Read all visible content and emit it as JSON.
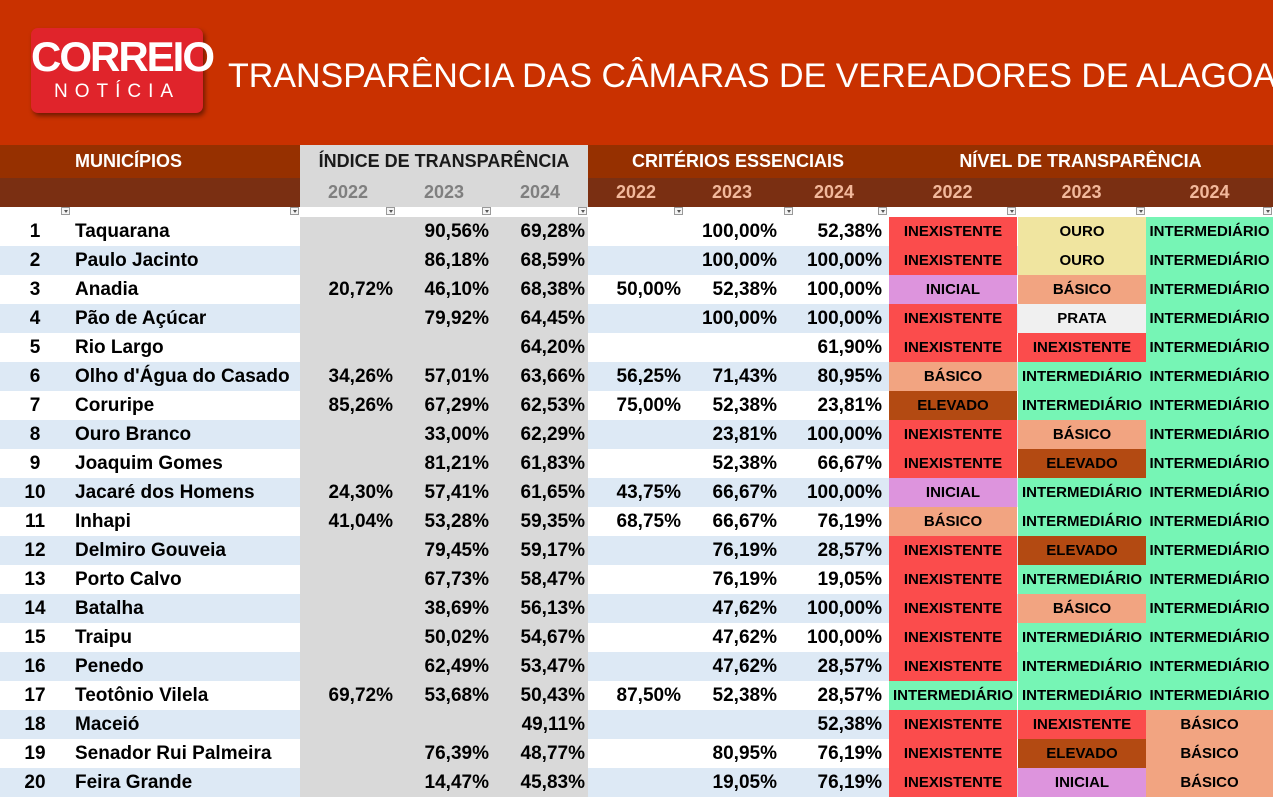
{
  "logo": {
    "top": "CORREIO",
    "bottom": "NOTÍCIA"
  },
  "title": "TRANSPARÊNCIA DAS CÂMARAS DE VEREADORES DE ALAGOAS",
  "headers": {
    "municipios": "MUNICÍPIOS",
    "indice": "ÍNDICE DE TRANSPARÊNCIA",
    "criterios": "CRITÉRIOS ESSENCIAIS",
    "nivel": "NÍVEL DE TRANSPARÊNCIA",
    "years": [
      "2022",
      "2023",
      "2024"
    ]
  },
  "colors": {
    "banner": "#c93100",
    "INEXISTENTE": "#fb4c4c",
    "OURO": "#f0e5a0",
    "INTERMEDIÁRIO": "#76f5b5",
    "INICIAL": "#dd94dd",
    "BÁSICO": "#f2a481",
    "PRATA": "#f0f0f0",
    "ELEVADO": "#b34a12"
  },
  "rows": [
    {
      "num": "1",
      "mun": "Taquarana",
      "i22": "",
      "i23": "90,56%",
      "i24": "69,28%",
      "c22": "",
      "c23": "100,00%",
      "c24": "52,38%",
      "n22": "INEXISTENTE",
      "n23": "OURO",
      "n24": "INTERMEDIÁRIO"
    },
    {
      "num": "2",
      "mun": "Paulo Jacinto",
      "i22": "",
      "i23": "86,18%",
      "i24": "68,59%",
      "c22": "",
      "c23": "100,00%",
      "c24": "100,00%",
      "n22": "INEXISTENTE",
      "n23": "OURO",
      "n24": "INTERMEDIÁRIO"
    },
    {
      "num": "3",
      "mun": "Anadia",
      "i22": "20,72%",
      "i23": "46,10%",
      "i24": "68,38%",
      "c22": "50,00%",
      "c23": "52,38%",
      "c24": "100,00%",
      "n22": "INICIAL",
      "n23": "BÁSICO",
      "n24": "INTERMEDIÁRIO"
    },
    {
      "num": "4",
      "mun": "Pão de Açúcar",
      "i22": "",
      "i23": "79,92%",
      "i24": "64,45%",
      "c22": "",
      "c23": "100,00%",
      "c24": "100,00%",
      "n22": "INEXISTENTE",
      "n23": "PRATA",
      "n24": "INTERMEDIÁRIO"
    },
    {
      "num": "5",
      "mun": "Rio Largo",
      "i22": "",
      "i23": "",
      "i24": "64,20%",
      "c22": "",
      "c23": "",
      "c24": "61,90%",
      "n22": "INEXISTENTE",
      "n23": "INEXISTENTE",
      "n24": "INTERMEDIÁRIO"
    },
    {
      "num": "6",
      "mun": "Olho d'Água do Casado",
      "i22": "34,26%",
      "i23": "57,01%",
      "i24": "63,66%",
      "c22": "56,25%",
      "c23": "71,43%",
      "c24": "80,95%",
      "n22": "BÁSICO",
      "n23": "INTERMEDIÁRIO",
      "n24": "INTERMEDIÁRIO"
    },
    {
      "num": "7",
      "mun": "Coruripe",
      "i22": "85,26%",
      "i23": "67,29%",
      "i24": "62,53%",
      "c22": "75,00%",
      "c23": "52,38%",
      "c24": "23,81%",
      "n22": "ELEVADO",
      "n23": "INTERMEDIÁRIO",
      "n24": "INTERMEDIÁRIO"
    },
    {
      "num": "8",
      "mun": "Ouro Branco",
      "i22": "",
      "i23": "33,00%",
      "i24": "62,29%",
      "c22": "",
      "c23": "23,81%",
      "c24": "100,00%",
      "n22": "INEXISTENTE",
      "n23": "BÁSICO",
      "n24": "INTERMEDIÁRIO"
    },
    {
      "num": "9",
      "mun": "Joaquim Gomes",
      "i22": "",
      "i23": "81,21%",
      "i24": "61,83%",
      "c22": "",
      "c23": "52,38%",
      "c24": "66,67%",
      "n22": "INEXISTENTE",
      "n23": "ELEVADO",
      "n24": "INTERMEDIÁRIO"
    },
    {
      "num": "10",
      "mun": "Jacaré dos Homens",
      "i22": "24,30%",
      "i23": "57,41%",
      "i24": "61,65%",
      "c22": "43,75%",
      "c23": "66,67%",
      "c24": "100,00%",
      "n22": "INICIAL",
      "n23": "INTERMEDIÁRIO",
      "n24": "INTERMEDIÁRIO"
    },
    {
      "num": "11",
      "mun": "Inhapi",
      "i22": "41,04%",
      "i23": "53,28%",
      "i24": "59,35%",
      "c22": "68,75%",
      "c23": "66,67%",
      "c24": "76,19%",
      "n22": "BÁSICO",
      "n23": "INTERMEDIÁRIO",
      "n24": "INTERMEDIÁRIO"
    },
    {
      "num": "12",
      "mun": "Delmiro Gouveia",
      "i22": "",
      "i23": "79,45%",
      "i24": "59,17%",
      "c22": "",
      "c23": "76,19%",
      "c24": "28,57%",
      "n22": "INEXISTENTE",
      "n23": "ELEVADO",
      "n24": "INTERMEDIÁRIO"
    },
    {
      "num": "13",
      "mun": "Porto Calvo",
      "i22": "",
      "i23": "67,73%",
      "i24": "58,47%",
      "c22": "",
      "c23": "76,19%",
      "c24": "19,05%",
      "n22": "INEXISTENTE",
      "n23": "INTERMEDIÁRIO",
      "n24": "INTERMEDIÁRIO"
    },
    {
      "num": "14",
      "mun": "Batalha",
      "i22": "",
      "i23": "38,69%",
      "i24": "56,13%",
      "c22": "",
      "c23": "47,62%",
      "c24": "100,00%",
      "n22": "INEXISTENTE",
      "n23": "BÁSICO",
      "n24": "INTERMEDIÁRIO"
    },
    {
      "num": "15",
      "mun": "Traipu",
      "i22": "",
      "i23": "50,02%",
      "i24": "54,67%",
      "c22": "",
      "c23": "47,62%",
      "c24": "100,00%",
      "n22": "INEXISTENTE",
      "n23": "INTERMEDIÁRIO",
      "n24": "INTERMEDIÁRIO"
    },
    {
      "num": "16",
      "mun": "Penedo",
      "i22": "",
      "i23": "62,49%",
      "i24": "53,47%",
      "c22": "",
      "c23": "47,62%",
      "c24": "28,57%",
      "n22": "INEXISTENTE",
      "n23": "INTERMEDIÁRIO",
      "n24": "INTERMEDIÁRIO"
    },
    {
      "num": "17",
      "mun": "Teotônio Vilela",
      "i22": "69,72%",
      "i23": "53,68%",
      "i24": "50,43%",
      "c22": "87,50%",
      "c23": "52,38%",
      "c24": "28,57%",
      "n22": "INTERMEDIÁRIO",
      "n23": "INTERMEDIÁRIO",
      "n24": "INTERMEDIÁRIO"
    },
    {
      "num": "18",
      "mun": "Maceió",
      "i22": "",
      "i23": "",
      "i24": "49,11%",
      "c22": "",
      "c23": "",
      "c24": "52,38%",
      "n22": "INEXISTENTE",
      "n23": "INEXISTENTE",
      "n24": "BÁSICO"
    },
    {
      "num": "19",
      "mun": "Senador Rui Palmeira",
      "i22": "",
      "i23": "76,39%",
      "i24": "48,77%",
      "c22": "",
      "c23": "80,95%",
      "c24": "76,19%",
      "n22": "INEXISTENTE",
      "n23": "ELEVADO",
      "n24": "BÁSICO"
    },
    {
      "num": "20",
      "mun": "Feira Grande",
      "i22": "",
      "i23": "14,47%",
      "i24": "45,83%",
      "c22": "",
      "c23": "19,05%",
      "c24": "76,19%",
      "n22": "INEXISTENTE",
      "n23": "INICIAL",
      "n24": "BÁSICO"
    }
  ]
}
